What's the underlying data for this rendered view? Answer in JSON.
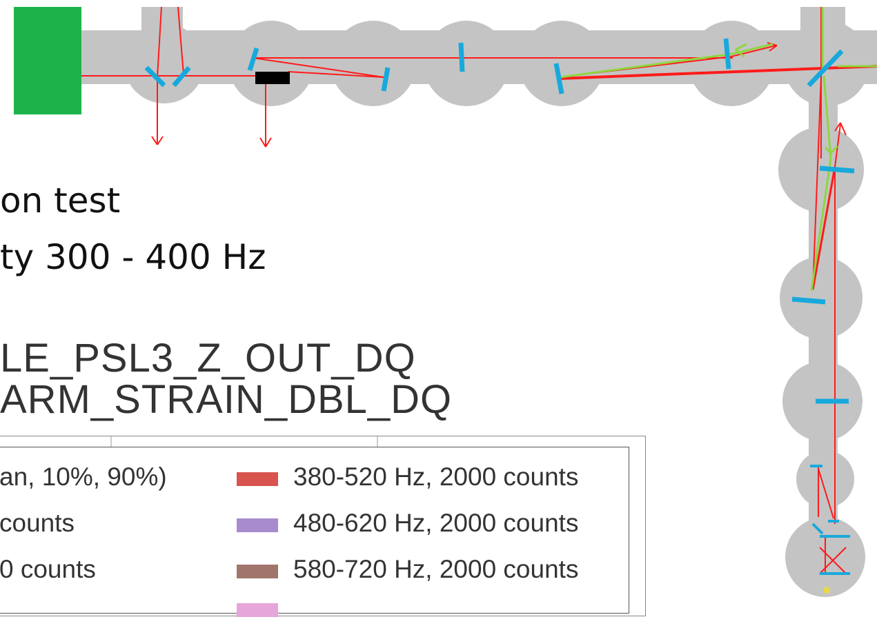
{
  "slide": {
    "line1": "on test",
    "line2": "ty 300 - 400 Hz",
    "channel1": "LE_PSL3_Z_OUT_DQ",
    "channel2": "ARM_STRAIN_DBL_DQ"
  },
  "legend": {
    "left": [
      {
        "label": "an, 10%, 90%)"
      },
      {
        "label": "counts"
      },
      {
        "label": "0 counts"
      }
    ],
    "right": [
      {
        "label": "380-520 Hz, 2000 counts",
        "color": "#d9534f"
      },
      {
        "label": "480-620 Hz, 2000 counts",
        "color": "#a78bce"
      },
      {
        "label": "580-720 Hz, 2000 counts",
        "color": "#a0766a"
      }
    ]
  },
  "colors": {
    "chamber": "#c4c4c4",
    "mirror": "#18a9dc",
    "beam": "#ff1a1a",
    "return_beam": "#8ed63f",
    "source_block": "#1db34a",
    "dump": "#000000"
  }
}
